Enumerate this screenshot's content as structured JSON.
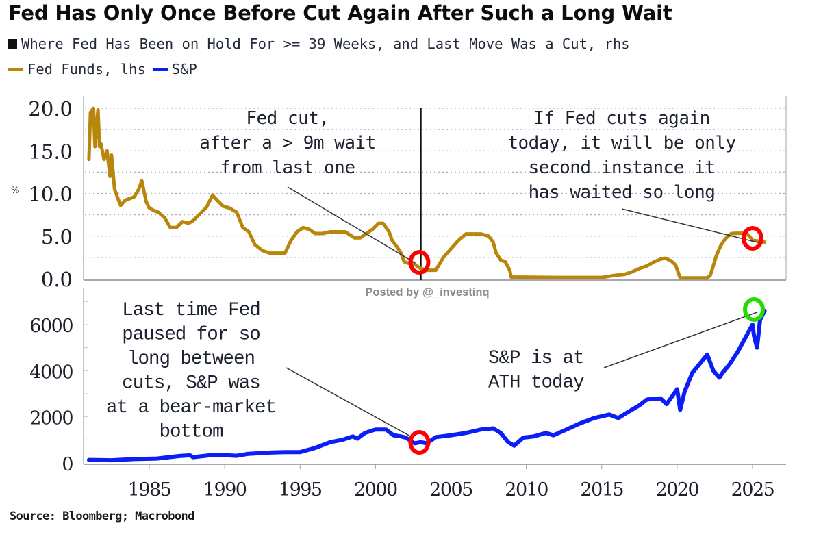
{
  "header": {
    "title": "Fed Has Only Once Before Cut Again After Such a Long Wait",
    "legend": [
      {
        "label": "Where Fed Has Been on Hold For >= 39 Weeks, and Last Move Was a Cut, rhs",
        "marker": "square",
        "color": "#111111"
      },
      {
        "label": "Fed Funds, lhs",
        "marker": "line",
        "color": "#b8860b"
      },
      {
        "label": "S&P",
        "marker": "line",
        "color": "#0a1ef5"
      }
    ]
  },
  "watermark": "Posted by @_investinq",
  "source": "Source: Bloomberg; Macrobond",
  "chart_data": [
    {
      "type": "line",
      "name": "fed-funds-panel",
      "title": "Fed Funds, lhs",
      "ylabel": "%",
      "ylim": [
        0,
        20
      ],
      "yticks": [
        "0.0",
        "5.0",
        "10.0",
        "15.0",
        "20.0"
      ],
      "ytick_values": [
        0,
        5,
        10,
        15,
        20
      ],
      "minor_grid_step": 2.5,
      "xlim": [
        1981.0,
        2028.3
      ],
      "grid": true,
      "series": [
        {
          "name": "Fed Funds",
          "color": "#b8860b",
          "x": [
            1981.0,
            1981.1,
            1981.3,
            1981.4,
            1981.6,
            1981.7,
            1981.8,
            1982.0,
            1982.2,
            1982.4,
            1982.5,
            1982.7,
            1982.9,
            1983.1,
            1983.4,
            1983.7,
            1984.0,
            1984.3,
            1984.5,
            1984.8,
            1985.0,
            1985.3,
            1985.6,
            1986.0,
            1986.4,
            1986.8,
            1987.2,
            1987.6,
            1987.9,
            1988.3,
            1988.8,
            1989.2,
            1989.5,
            1989.9,
            1990.3,
            1990.8,
            1991.2,
            1991.6,
            1992.0,
            1992.5,
            1993.0,
            1993.5,
            1994.0,
            1994.4,
            1994.8,
            1995.2,
            1995.6,
            1996.0,
            1996.5,
            1997.0,
            1997.5,
            1998.0,
            1998.6,
            1999.0,
            1999.4,
            1999.8,
            2000.2,
            2000.5,
            2000.9,
            2001.1,
            2001.4,
            2001.7,
            2001.9,
            2002.2,
            2002.6,
            2002.9,
            2003.0,
            2003.5,
            2004.0,
            2004.5,
            2005.0,
            2005.5,
            2006.0,
            2006.5,
            2007.0,
            2007.5,
            2007.8,
            2008.0,
            2008.3,
            2008.6,
            2008.9,
            2009.0,
            2012.0,
            2015.0,
            2015.9,
            2016.5,
            2017.0,
            2017.5,
            2018.0,
            2018.5,
            2018.9,
            2019.2,
            2019.6,
            2019.9,
            2020.2,
            2021.0,
            2022.0,
            2022.2,
            2022.4,
            2022.6,
            2022.9,
            2023.2,
            2023.6,
            2024.0,
            2024.6,
            2024.8,
            2025.0,
            2025.5,
            2025.8
          ],
          "values": [
            14.0,
            19.5,
            20.0,
            15.5,
            19.8,
            15.5,
            15.8,
            14.0,
            15.0,
            12.0,
            14.5,
            10.5,
            9.5,
            8.6,
            9.2,
            9.4,
            9.6,
            10.5,
            11.5,
            9.0,
            8.3,
            8.0,
            7.8,
            7.2,
            6.0,
            6.0,
            6.7,
            6.5,
            6.8,
            7.5,
            8.4,
            9.8,
            9.2,
            8.5,
            8.3,
            7.8,
            6.0,
            5.5,
            4.0,
            3.3,
            3.0,
            3.0,
            3.0,
            4.5,
            5.5,
            6.0,
            5.8,
            5.3,
            5.3,
            5.5,
            5.5,
            5.5,
            4.8,
            4.8,
            5.3,
            5.8,
            6.5,
            6.5,
            5.5,
            4.5,
            3.8,
            3.0,
            2.0,
            1.8,
            1.7,
            1.3,
            1.2,
            1.0,
            1.0,
            2.5,
            3.5,
            4.5,
            5.25,
            5.25,
            5.25,
            5.0,
            4.3,
            3.0,
            2.2,
            2.0,
            1.0,
            0.2,
            0.15,
            0.15,
            0.4,
            0.5,
            0.8,
            1.2,
            1.5,
            2.0,
            2.3,
            2.4,
            2.1,
            1.6,
            0.1,
            0.1,
            0.1,
            0.4,
            1.5,
            2.7,
            3.9,
            4.7,
            5.3,
            5.33,
            5.33,
            5.0,
            4.5,
            4.4,
            4.3
          ]
        },
        {
          "name": "Where Fed Has Been on Hold For >= 39 Weeks, and Last Move Was a Cut",
          "color": "#111111",
          "type": "vertical-marker",
          "x": [
            2003.0
          ]
        }
      ],
      "highlights": [
        {
          "x": 2003.0,
          "y": 1.0,
          "color": "#ff0000"
        },
        {
          "x": 2025.8,
          "y": 4.3,
          "color": "#ff0000"
        }
      ],
      "annotations": [
        {
          "lines": [
            "Fed cut,",
            "after a > 9m wait",
            "from last one"
          ],
          "points_to": {
            "x": 2003.0,
            "y": 1.2
          }
        },
        {
          "lines": [
            "If Fed cuts again",
            "today, it will be only",
            "second instance it",
            "has waited so long"
          ],
          "points_to": {
            "x": 2025.8,
            "y": 4.3
          }
        }
      ]
    },
    {
      "type": "line",
      "name": "sp500-panel",
      "title": "S&P",
      "ylim": [
        0,
        7000
      ],
      "yticks": [
        "0",
        "2000",
        "4000",
        "6000"
      ],
      "ytick_values": [
        0,
        2000,
        4000,
        6000
      ],
      "xticks": [
        "1985",
        "1990",
        "1995",
        "2000",
        "2005",
        "2010",
        "2015",
        "2020",
        "2025"
      ],
      "xtick_values": [
        1985,
        1990,
        1995,
        2000,
        2005,
        2010,
        2015,
        2020,
        2025
      ],
      "xlim": [
        1981.0,
        2028.3
      ],
      "series": [
        {
          "name": "S&P",
          "color": "#0a1ef5",
          "x": [
            1981.0,
            1982.5,
            1984.0,
            1985.5,
            1987.0,
            1987.7,
            1987.9,
            1989.0,
            1990.0,
            1990.8,
            1991.5,
            1993.0,
            1994.0,
            1995.0,
            1996.0,
            1997.0,
            1997.8,
            1998.5,
            1998.8,
            1999.3,
            2000.0,
            2000.7,
            2001.2,
            2001.7,
            2002.0,
            2002.6,
            2003.0,
            2003.4,
            2004.0,
            2005.0,
            2006.0,
            2007.0,
            2007.8,
            2008.3,
            2008.8,
            2009.2,
            2009.8,
            2010.5,
            2011.3,
            2011.8,
            2012.5,
            2013.5,
            2014.5,
            2015.5,
            2016.1,
            2016.6,
            2017.5,
            2018.0,
            2018.9,
            2019.3,
            2020.0,
            2020.2,
            2020.5,
            2021.0,
            2021.5,
            2022.0,
            2022.4,
            2022.8,
            2023.0,
            2023.5,
            2024.0,
            2024.5,
            2025.0,
            2025.1,
            2025.3,
            2025.5,
            2025.8
          ],
          "values": [
            130,
            115,
            165,
            190,
            300,
            330,
            250,
            330,
            340,
            310,
            390,
            450,
            470,
            470,
            650,
            900,
            1000,
            1150,
            1050,
            1300,
            1450,
            1450,
            1200,
            1150,
            1100,
            850,
            900,
            850,
            1120,
            1200,
            1300,
            1450,
            1500,
            1300,
            900,
            750,
            1100,
            1150,
            1300,
            1200,
            1400,
            1700,
            1950,
            2100,
            1950,
            2150,
            2500,
            2750,
            2800,
            2550,
            3200,
            2300,
            3100,
            3900,
            4300,
            4700,
            4000,
            3700,
            3900,
            4300,
            4800,
            5400,
            6000,
            5500,
            5000,
            6200,
            6600
          ]
        }
      ],
      "highlights": [
        {
          "x": 2003.0,
          "y": 900,
          "color": "#ff0000"
        },
        {
          "x": 2025.8,
          "y": 6650,
          "color": "#22dd00"
        }
      ],
      "annotations": [
        {
          "lines": [
            "Last time Fed",
            "paused for so",
            "long between",
            "cuts, S&P was",
            "at a bear-market",
            "bottom"
          ],
          "points_to": {
            "x": 2002.6,
            "y": 1000
          }
        },
        {
          "lines": [
            "S&P is at",
            "ATH today"
          ],
          "points_to": {
            "x": 2025.6,
            "y": 6600
          }
        }
      ]
    }
  ]
}
